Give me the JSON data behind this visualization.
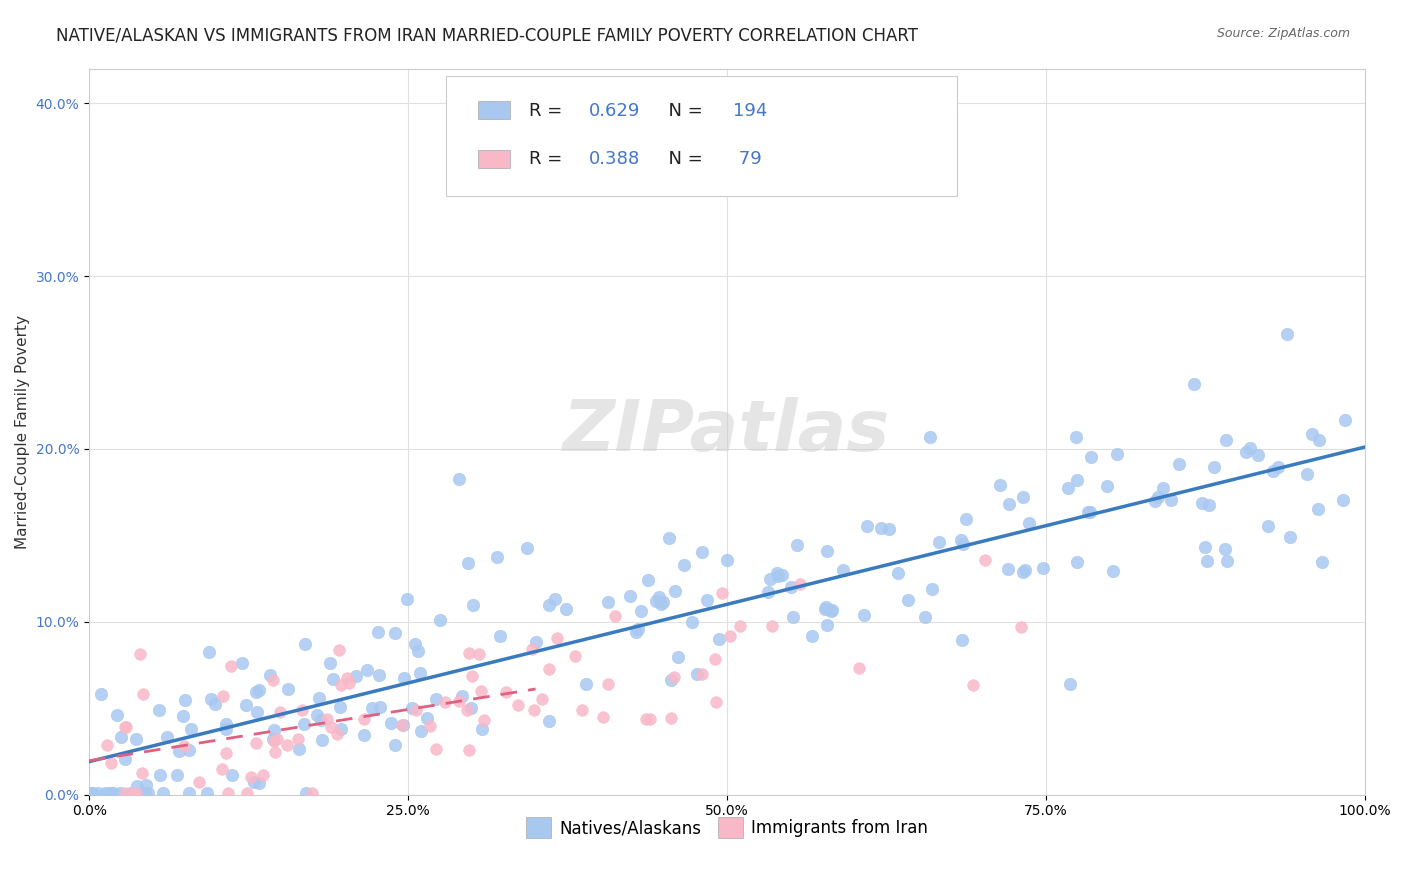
{
  "title": "NATIVE/ALASKAN VS IMMIGRANTS FROM IRAN MARRIED-COUPLE FAMILY POVERTY CORRELATION CHART",
  "source": "Source: ZipAtlas.com",
  "xlabel_bottom": "",
  "ylabel": "Married-Couple Family Poverty",
  "xlim": [
    0,
    1
  ],
  "ylim": [
    0,
    0.42
  ],
  "xtick_labels": [
    "0.0%",
    "100.0%"
  ],
  "ytick_labels": [
    "0.0%",
    "10.0%",
    "20.0%",
    "30.0%",
    "40.0%"
  ],
  "ytick_values": [
    0,
    0.1,
    0.2,
    0.3,
    0.4
  ],
  "xtick_values": [
    0,
    1.0
  ],
  "legend_entries": [
    {
      "label": "R = 0.629   N = 194",
      "color": "#a8c8f0"
    },
    {
      "label": "R = 0.388   N =  79",
      "color": "#f9b8c8"
    }
  ],
  "blue_scatter_color": "#a8c8f0",
  "pink_scatter_color": "#f9b8c8",
  "blue_line_color": "#3a7abf",
  "pink_line_color": "#e06080",
  "r_blue": 0.629,
  "n_blue": 194,
  "r_pink": 0.388,
  "n_pink": 79,
  "watermark": "ZIPatlas",
  "background_color": "#ffffff",
  "grid_color": "#e0e0e0",
  "title_fontsize": 12,
  "axis_label_fontsize": 11,
  "tick_fontsize": 10
}
